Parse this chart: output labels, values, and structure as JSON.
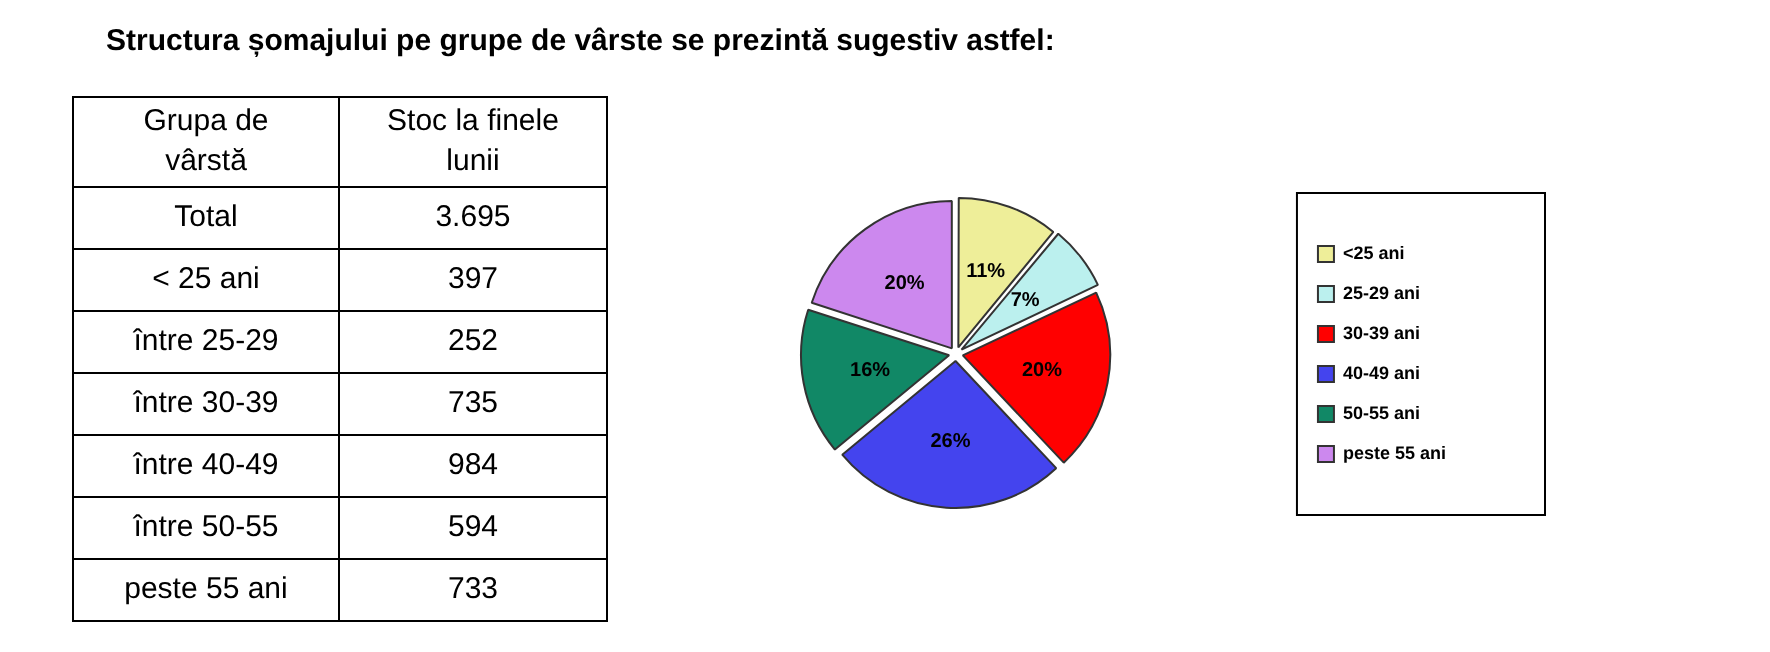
{
  "chart_data": [
    {
      "type": "other",
      "title": "Structura șomajului pe grupe de vârste se prezintă sugestiv astfel:",
      "xlabel": "Grupa de vârstă",
      "ylabel": "Stoc la finele lunii",
      "categories": [
        "Total",
        "< 25 ani",
        "între 25-29",
        "între 30-39",
        "între 40-49",
        "între 50-55",
        "peste 55 ani"
      ],
      "value_labels": [
        "3.695",
        "397",
        "252",
        "735",
        "984",
        "594",
        "733"
      ]
    },
    {
      "type": "pie",
      "categories": [
        "<25 ani",
        "25-29 ani",
        "30-39 ani",
        "40-49 ani",
        "50-55 ani",
        "peste 55 ani"
      ],
      "values": [
        11,
        7,
        20,
        26,
        16,
        20
      ],
      "colors": [
        "#eeee99",
        "#bbf0ee",
        "#ff0000",
        "#4444ee",
        "#118866",
        "#cc88ee"
      ],
      "value_labels": [
        "11%",
        "7%",
        "20%",
        "26%",
        "16%",
        "20%"
      ],
      "legend": "right"
    }
  ]
}
